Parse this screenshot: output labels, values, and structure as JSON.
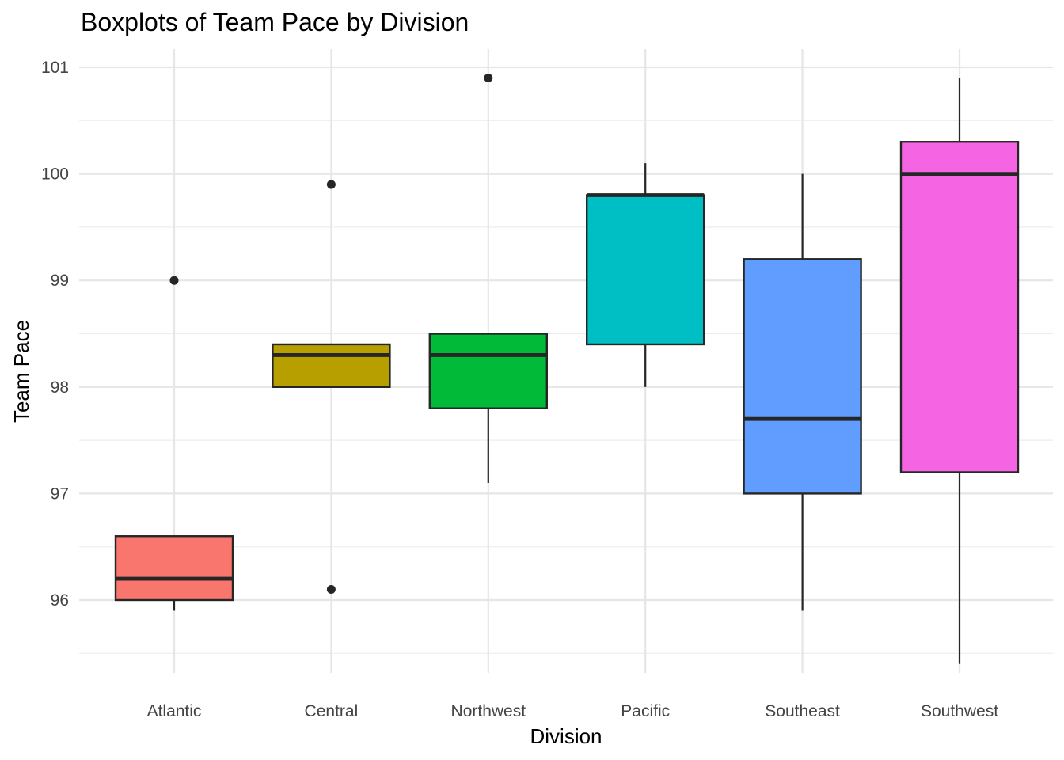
{
  "chart_data": {
    "type": "boxplot",
    "title": "Boxplots of Team Pace by Division",
    "xlabel": "Division",
    "ylabel": "Team Pace",
    "categories": [
      "Atlantic",
      "Central",
      "Northwest",
      "Pacific",
      "Southeast",
      "Southwest"
    ],
    "ylim": [
      95.25,
      101.17
    ],
    "yticks": [
      96,
      97,
      98,
      99,
      100,
      101
    ],
    "grid": true,
    "legend": "none",
    "box_outline_color": "#262626",
    "series": [
      {
        "category": "Atlantic",
        "color": "#F8766D",
        "min": 95.9,
        "q1": 96.0,
        "median": 96.2,
        "q3": 96.6,
        "max": 96.6,
        "outliers": [
          99.0
        ]
      },
      {
        "category": "Central",
        "color": "#B79F00",
        "min": 98.0,
        "q1": 98.0,
        "median": 98.3,
        "q3": 98.4,
        "max": 98.4,
        "outliers": [
          99.9,
          96.1
        ]
      },
      {
        "category": "Northwest",
        "color": "#00BA38",
        "min": 97.1,
        "q1": 97.8,
        "median": 98.3,
        "q3": 98.5,
        "max": 98.5,
        "outliers": [
          100.9
        ]
      },
      {
        "category": "Pacific",
        "color": "#00BFC4",
        "min": 98.0,
        "q1": 98.4,
        "median": 99.8,
        "q3": 99.8,
        "max": 100.1,
        "outliers": []
      },
      {
        "category": "Southeast",
        "color": "#619CFF",
        "min": 95.9,
        "q1": 97.0,
        "median": 97.7,
        "q3": 99.2,
        "max": 100.0,
        "outliers": []
      },
      {
        "category": "Southwest",
        "color": "#F564E3",
        "min": 95.4,
        "q1": 97.2,
        "median": 100.0,
        "q3": 100.3,
        "max": 100.9,
        "outliers": []
      }
    ]
  }
}
